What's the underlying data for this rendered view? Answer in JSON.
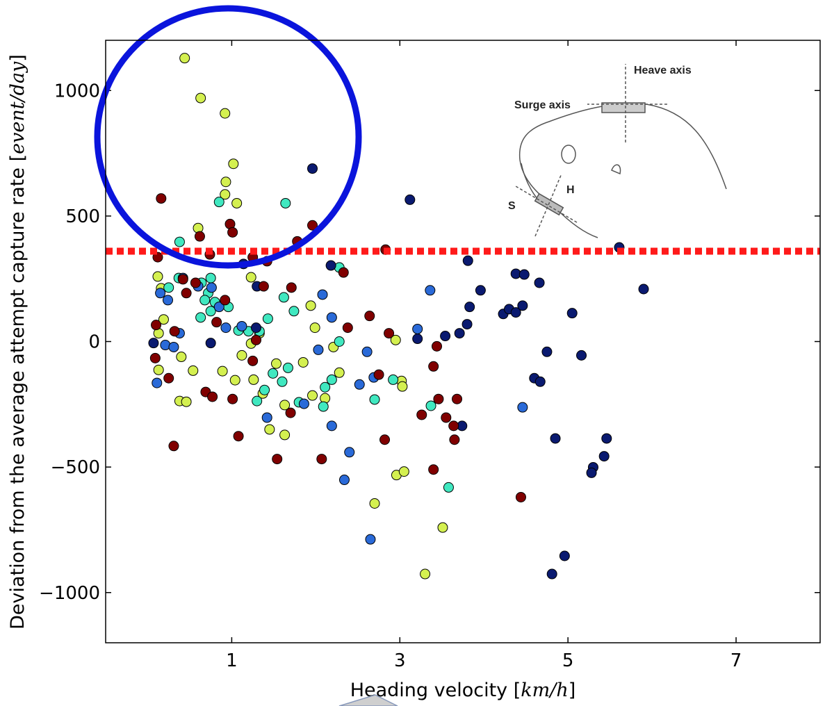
{
  "chart_data": {
    "type": "scatter",
    "xlabel_parts": [
      "Heading velocity [",
      "km/h",
      "]"
    ],
    "ylabel_parts": [
      "Deviation from the average attempt capture rate [",
      "event/day",
      "]"
    ],
    "xlim": [
      -0.5,
      8
    ],
    "ylim": [
      -1200,
      1200
    ],
    "xticks": [
      1,
      3,
      5,
      7
    ],
    "yticks": [
      {
        "value": -1000,
        "label": "−1000"
      },
      {
        "value": -500,
        "label": "−500"
      },
      0,
      500,
      1000
    ],
    "threshold_y": 360,
    "threshold_color": "#ff1a1a",
    "inset_labels": [
      "Heave axis",
      "Surge axis",
      "H",
      "S"
    ],
    "series": [
      {
        "color": "#d4f050",
        "x": [
          0.44,
          0.63,
          0.92,
          1.02,
          0.93,
          0.92,
          1.06,
          0.6,
          0.12,
          0.16,
          0.19,
          1.23,
          0.13,
          0.4,
          0.54,
          1.04,
          0.89,
          0.13,
          0.38,
          0.46,
          1.12,
          1.26,
          1.37,
          1.45,
          1.53,
          1.63,
          1.63,
          1.85,
          1.94,
          1.99,
          1.96,
          2.11,
          2.21,
          2.28,
          3.02,
          3.03,
          3.3,
          3.51,
          2.96,
          3.05,
          2.7,
          2.95,
          1.23,
          1.33
        ],
        "values": [
          1129,
          970,
          909,
          708,
          636,
          586,
          551,
          452,
          259,
          212,
          88,
          256,
          33,
          -61,
          -116,
          -154,
          -118,
          -113,
          -237,
          -240,
          -55,
          -152,
          -207,
          -350,
          -88,
          -253,
          -372,
          -83,
          143,
          55,
          -215,
          -226,
          -22,
          -124,
          -157,
          -179,
          -926,
          -741,
          -532,
          -518,
          -645,
          6,
          -8,
          33
        ]
      },
      {
        "color": "#40e8c0",
        "x": [
          0.85,
          1.64,
          0.38,
          0.37,
          0.25,
          0.64,
          0.75,
          0.72,
          0.68,
          0.8,
          0.63,
          0.75,
          0.96,
          1.08,
          1.2,
          1.33,
          1.43,
          1.62,
          1.74,
          1.3,
          1.39,
          1.49,
          1.6,
          1.67,
          1.8,
          2.09,
          2.11,
          2.19,
          2.28,
          2.28,
          3.37,
          3.58,
          2.92,
          2.7
        ],
        "values": [
          556,
          551,
          397,
          253,
          215,
          234,
          253,
          193,
          165,
          157,
          96,
          121,
          138,
          44,
          41,
          41,
          91,
          176,
          121,
          -237,
          -193,
          -127,
          -160,
          -105,
          -242,
          -259,
          -182,
          -152,
          0,
          295,
          -256,
          -581,
          -152,
          -231
        ]
      },
      {
        "color": "#2a6ad8",
        "x": [
          0.15,
          0.24,
          0.42,
          0.6,
          0.76,
          0.85,
          0.93,
          0.21,
          0.31,
          0.11,
          0.38,
          1.12,
          1.42,
          1.86,
          2.03,
          2.08,
          2.19,
          2.19,
          2.34,
          2.4,
          2.52,
          2.61,
          2.69,
          3.21,
          3.36,
          2.65,
          4.46
        ],
        "values": [
          193,
          165,
          253,
          220,
          215,
          138,
          55,
          -14,
          -22,
          -165,
          33,
          61,
          -303,
          -248,
          -33,
          187,
          96,
          -336,
          -551,
          -441,
          -171,
          -41,
          -143,
          50,
          204,
          -788,
          -262
        ]
      },
      {
        "color": "#0a1a70",
        "x": [
          1.96,
          3.12,
          5.61,
          5.9,
          3.96,
          3.83,
          3.8,
          3.71,
          3.54,
          3.21,
          4.23,
          4.3,
          4.38,
          4.46,
          4.38,
          4.48,
          4.66,
          5.05,
          4.75,
          5.16,
          4.6,
          4.67,
          3.74,
          4.85,
          5.46,
          5.43,
          5.3,
          5.28,
          4.96,
          4.81,
          3.81,
          0.75,
          1.29,
          0.07,
          1.3,
          2.18,
          1.14
        ],
        "values": [
          689,
          565,
          375,
          209,
          204,
          138,
          69,
          33,
          22,
          11,
          110,
          129,
          116,
          143,
          270,
          267,
          234,
          113,
          -41,
          -55,
          -146,
          -160,
          -336,
          -386,
          -386,
          -457,
          -501,
          -523,
          -854,
          -926,
          322,
          -6,
          55,
          -6,
          220,
          303,
          309
        ]
      },
      {
        "color": "#800000",
        "x": [
          0.16,
          0.62,
          0.98,
          1.01,
          1.96,
          1.78,
          0.74,
          0.12,
          1.25,
          1.42,
          2.83,
          2.33,
          0.42,
          0.57,
          0.46,
          0.92,
          1.38,
          1.71,
          0.82,
          0.1,
          0.32,
          0.09,
          0.25,
          1.01,
          0.69,
          0.77,
          1.25,
          1.29,
          1.08,
          1.54,
          1.7,
          2.07,
          2.38,
          2.64,
          2.75,
          2.82,
          2.87,
          3.26,
          3.44,
          3.4,
          3.46,
          3.55,
          3.64,
          3.68,
          3.65,
          3.4,
          4.44,
          0.31
        ],
        "values": [
          570,
          419,
          468,
          435,
          463,
          399,
          347,
          336,
          336,
          320,
          366,
          275,
          248,
          234,
          193,
          165,
          220,
          215,
          77,
          66,
          41,
          -66,
          -146,
          -229,
          -201,
          -220,
          -77,
          6,
          -377,
          -468,
          -284,
          -468,
          55,
          102,
          -132,
          -391,
          33,
          -292,
          -19,
          -99,
          -229,
          -303,
          -336,
          -229,
          -391,
          -510,
          -620,
          -416
        ]
      }
    ]
  }
}
